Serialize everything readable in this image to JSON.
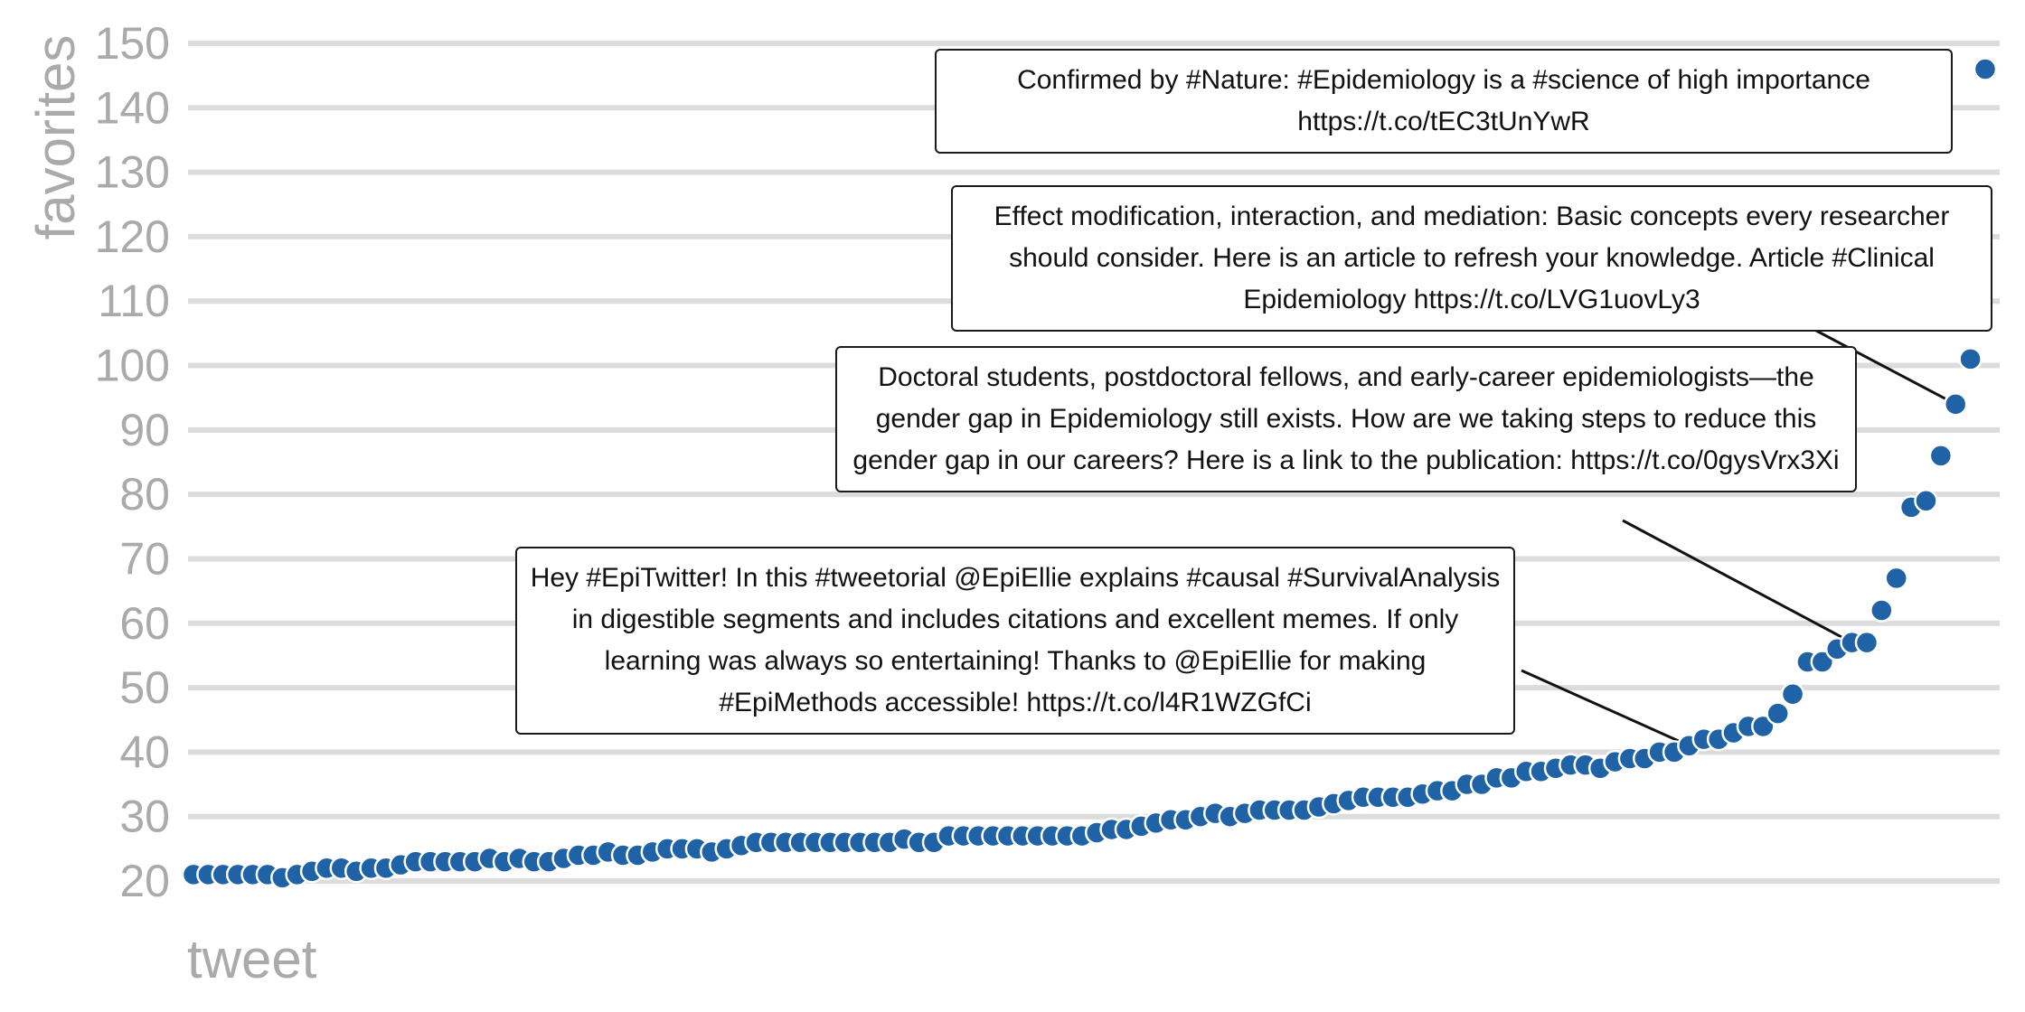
{
  "chart_data": {
    "type": "scatter",
    "title": "",
    "xlabel": "tweet",
    "ylabel": "favorites",
    "ylim": [
      20,
      150
    ],
    "yticks": [
      20,
      30,
      40,
      50,
      60,
      70,
      80,
      90,
      100,
      110,
      120,
      130,
      140,
      150
    ],
    "grid": "horizontal",
    "legend": "none",
    "color": "#1f62a5",
    "series": [
      {
        "values": [
          21,
          21,
          21,
          21,
          21,
          21,
          20.5,
          21,
          21.5,
          22,
          22,
          21.5,
          22,
          22,
          22.5,
          23,
          23,
          23,
          23,
          23,
          23.5,
          23,
          23.5,
          23,
          23,
          23.5,
          24,
          24,
          24.5,
          24,
          24,
          24.5,
          25,
          25,
          25,
          24.5,
          25,
          25.5,
          26,
          26,
          26,
          26,
          26,
          26,
          26,
          26,
          26,
          26,
          26.5,
          26,
          26,
          27,
          27,
          27,
          27,
          27,
          27,
          27,
          27,
          27,
          27,
          27.5,
          28,
          28,
          28.5,
          29,
          29.5,
          29.5,
          30,
          30.5,
          30,
          30.5,
          31,
          31,
          31,
          31,
          31.5,
          32,
          32.5,
          33,
          33,
          33,
          33,
          33.5,
          34,
          34,
          35,
          35,
          36,
          36,
          37,
          37,
          37.5,
          38,
          38,
          37.5,
          38.5,
          39,
          39,
          40,
          40,
          41,
          42,
          42,
          43,
          44,
          44,
          46,
          49,
          54,
          54,
          56,
          57,
          57,
          62,
          67,
          78,
          79,
          86,
          94,
          101,
          146
        ]
      }
    ],
    "annotations": [
      {
        "text": "Confirmed by #Nature: #Epidemiology is a #science of high importance https://t.co/tEC3tUnYwR",
        "point_index": 121
      },
      {
        "text": "Effect modification, interaction, and mediation: Basic concepts every researcher should consider. Here is an article to refresh your knowledge. Article #Clinical Epidemiology https://t.co/LVG1uovLy3",
        "point_index": 119
      },
      {
        "text": "Doctoral students, postdoctoral fellows, and early-career epidemiologists—the gender gap in Epidemiology still exists. How are we taking steps to reduce this gender gap in our careers? Here is a link to the publication: https://t.co/0gysVrx3Xi",
        "point_index": 112
      },
      {
        "text": "Hey #EpiTwitter! In this #tweetorial @EpiEllie explains #causal #SurvivalAnalysis in digestible segments and includes citations and excellent memes. If only learning was always so entertaining! Thanks to @EpiEllie for making #EpiMethods accessible! https://t.co/l4R1WZGfCi",
        "point_index": 101
      }
    ]
  }
}
